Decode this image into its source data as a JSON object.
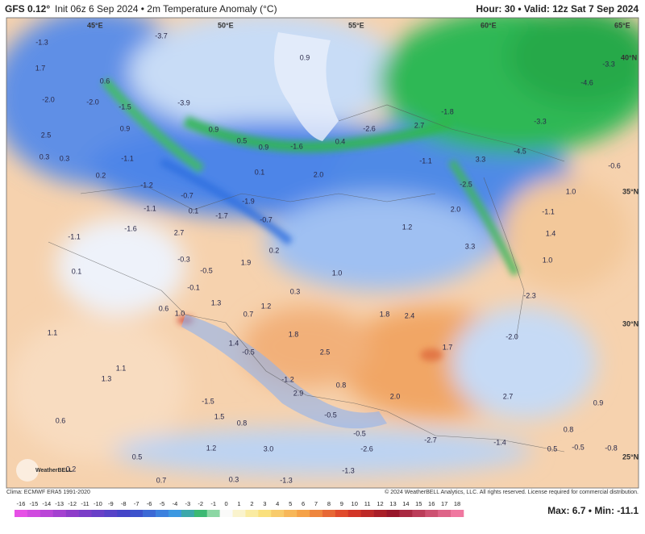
{
  "header": {
    "model": "GFS 0.12°",
    "title": "Init 06z 6 Sep 2024 • 2m Temperature Anomaly (°C)",
    "valid": "Hour: 30 • Valid: 12z Sat 7 Sep 2024"
  },
  "map": {
    "gridlabels": [
      "45°E",
      "50°E",
      "55°E",
      "60°E",
      "65°E",
      "40°N",
      "35°N",
      "30°N",
      "25°N"
    ],
    "values": [
      "-1.3",
      "1.7",
      "-2.0",
      "2.5",
      "0.3",
      "0.3",
      "-2.0",
      "-1.5",
      "0.6",
      "0.9",
      "-3.9",
      "0.9",
      "0.5",
      "0.9",
      "-1.6",
      "0.4",
      "-2.6",
      "2.7",
      "-1.8",
      "3.3",
      "-1.1",
      "-3.3",
      "-4.5",
      "-4.6",
      "-3.3",
      "0.9",
      "-3.7",
      "-0.6",
      "1.0",
      "-1.1",
      "1.4",
      "1.0",
      "-2.5",
      "2.0",
      "1.2",
      "3.3",
      "-2.3",
      "-2.0",
      "-1.1",
      "0.2",
      "-1.2",
      "-0.7",
      "-1.9",
      "0.1",
      "2.0",
      "-1.1",
      "0.1",
      "-1.7",
      "-0.7",
      "-1.6",
      "2.7",
      "-1.1",
      "-0.3",
      "1.9",
      "0.2",
      "-0.5",
      "1.0",
      "0.1",
      "-0.1",
      "0.3",
      "1.3",
      "0.6",
      "1.0",
      "0.7",
      "1.2",
      "1.8",
      "2.4",
      "1.8",
      "1.4",
      "-0.5",
      "2.5",
      "1.7",
      "1.1",
      "1.1",
      "1.3",
      "-1.2",
      "0.8",
      "2.9",
      "2.0",
      "-0.5",
      "2.7",
      "0.9",
      "-1.5",
      "1.5",
      "0.8",
      "-0.5",
      "0.8",
      "0.6",
      "1.2",
      "3.0",
      "-2.6",
      "-2.7",
      "-1.4",
      "0.5",
      "-0.5",
      "-0.8",
      "0.5",
      "0.2",
      "0.7",
      "0.3",
      "-1.3",
      "-1.3"
    ],
    "logo": "WeatherBELL"
  },
  "footer": {
    "climo": "Clima: ECMWF ERA5 1991-2020",
    "copyright": "© 2024 WeatherBELL Analytics, LLC. All rights reserved. License required for commercial distribution.",
    "colorbar": [
      -16,
      -15,
      -14,
      -13,
      -12,
      -11,
      -10,
      -9,
      -8,
      -7,
      -6,
      -5,
      -4,
      -3,
      -2,
      -1,
      0,
      1,
      2,
      3,
      4,
      5,
      6,
      7,
      8,
      9,
      10,
      11,
      12,
      13,
      14,
      15,
      16,
      17,
      18
    ],
    "stats": "Max: 6.7 • Min: -11.1"
  }
}
